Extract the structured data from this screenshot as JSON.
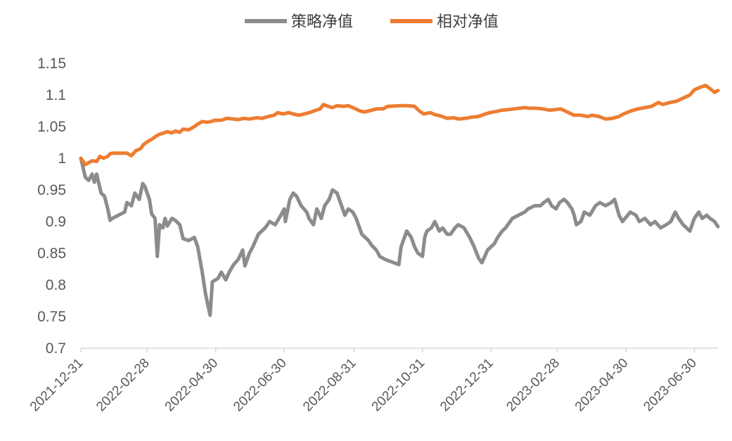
{
  "chart_data": {
    "type": "line",
    "title": "",
    "xlabel": "",
    "ylabel": "",
    "ylim": [
      0.7,
      1.15
    ],
    "yticks": [
      "1.15",
      "1.1",
      "1.05",
      "1",
      "0.95",
      "0.9",
      "0.85",
      "0.8",
      "0.75",
      "0.7"
    ],
    "xticks": [
      "2021-12-31",
      "2022-02-28",
      "2022-04-30",
      "2022-06-30",
      "2022-08-31",
      "2022-10-31",
      "2022-12-31",
      "2023-02-28",
      "2023-04-30",
      "2023-06-30"
    ],
    "xlim": [
      "2021-12-31",
      "2023-07-21"
    ],
    "grid": false,
    "legend_position": "top-center",
    "series": [
      {
        "name": "策略净值",
        "color": "#8c8c8c",
        "points": [
          [
            "2021-12-31",
            1.0
          ],
          [
            "2022-01-04",
            0.97
          ],
          [
            "2022-01-07",
            0.965
          ],
          [
            "2022-01-10",
            0.975
          ],
          [
            "2022-01-12",
            0.962
          ],
          [
            "2022-01-14",
            0.975
          ],
          [
            "2022-01-18",
            0.945
          ],
          [
            "2022-01-21",
            0.94
          ],
          [
            "2022-01-24",
            0.92
          ],
          [
            "2022-01-26",
            0.902
          ],
          [
            "2022-01-28",
            0.905
          ],
          [
            "2022-02-08",
            0.915
          ],
          [
            "2022-02-10",
            0.93
          ],
          [
            "2022-02-14",
            0.925
          ],
          [
            "2022-02-17",
            0.945
          ],
          [
            "2022-02-21",
            0.935
          ],
          [
            "2022-02-24",
            0.96
          ],
          [
            "2022-02-26",
            0.955
          ],
          [
            "2022-03-02",
            0.935
          ],
          [
            "2022-03-04",
            0.912
          ],
          [
            "2022-03-07",
            0.905
          ],
          [
            "2022-03-09",
            0.845
          ],
          [
            "2022-03-11",
            0.895
          ],
          [
            "2022-03-14",
            0.89
          ],
          [
            "2022-03-16",
            0.905
          ],
          [
            "2022-03-18",
            0.893
          ],
          [
            "2022-03-22",
            0.905
          ],
          [
            "2022-03-25",
            0.902
          ],
          [
            "2022-03-29",
            0.895
          ],
          [
            "2022-04-01",
            0.873
          ],
          [
            "2022-04-06",
            0.87
          ],
          [
            "2022-04-11",
            0.875
          ],
          [
            "2022-04-14",
            0.86
          ],
          [
            "2022-04-18",
            0.82
          ],
          [
            "2022-04-21",
            0.785
          ],
          [
            "2022-04-25",
            0.752
          ],
          [
            "2022-04-27",
            0.805
          ],
          [
            "2022-05-02",
            0.81
          ],
          [
            "2022-05-05",
            0.82
          ],
          [
            "2022-05-09",
            0.808
          ],
          [
            "2022-05-12",
            0.82
          ],
          [
            "2022-05-16",
            0.832
          ],
          [
            "2022-05-20",
            0.84
          ],
          [
            "2022-05-24",
            0.855
          ],
          [
            "2022-05-26",
            0.83
          ],
          [
            "2022-05-30",
            0.85
          ],
          [
            "2022-06-02",
            0.86
          ],
          [
            "2022-06-07",
            0.88
          ],
          [
            "2022-06-13",
            0.89
          ],
          [
            "2022-06-17",
            0.9
          ],
          [
            "2022-06-22",
            0.895
          ],
          [
            "2022-06-27",
            0.91
          ],
          [
            "2022-06-30",
            0.92
          ],
          [
            "2022-07-01",
            0.9
          ],
          [
            "2022-07-05",
            0.935
          ],
          [
            "2022-07-08",
            0.945
          ],
          [
            "2022-07-11",
            0.94
          ],
          [
            "2022-07-15",
            0.925
          ],
          [
            "2022-07-20",
            0.915
          ],
          [
            "2022-07-22",
            0.905
          ],
          [
            "2022-07-26",
            0.895
          ],
          [
            "2022-07-29",
            0.92
          ],
          [
            "2022-08-02",
            0.905
          ],
          [
            "2022-08-05",
            0.925
          ],
          [
            "2022-08-09",
            0.935
          ],
          [
            "2022-08-12",
            0.95
          ],
          [
            "2022-08-16",
            0.945
          ],
          [
            "2022-08-19",
            0.93
          ],
          [
            "2022-08-23",
            0.91
          ],
          [
            "2022-08-26",
            0.92
          ],
          [
            "2022-08-30",
            0.915
          ],
          [
            "2022-09-02",
            0.905
          ],
          [
            "2022-09-07",
            0.88
          ],
          [
            "2022-09-13",
            0.87
          ],
          [
            "2022-09-16",
            0.862
          ],
          [
            "2022-09-20",
            0.855
          ],
          [
            "2022-09-23",
            0.845
          ],
          [
            "2022-09-28",
            0.84
          ],
          [
            "2022-10-10",
            0.832
          ],
          [
            "2022-10-12",
            0.86
          ],
          [
            "2022-10-17",
            0.885
          ],
          [
            "2022-10-21",
            0.875
          ],
          [
            "2022-10-24",
            0.86
          ],
          [
            "2022-10-27",
            0.85
          ],
          [
            "2022-10-31",
            0.845
          ],
          [
            "2022-11-02",
            0.875
          ],
          [
            "2022-11-04",
            0.885
          ],
          [
            "2022-11-08",
            0.89
          ],
          [
            "2022-11-11",
            0.9
          ],
          [
            "2022-11-15",
            0.885
          ],
          [
            "2022-11-18",
            0.89
          ],
          [
            "2022-11-22",
            0.88
          ],
          [
            "2022-11-25",
            0.88
          ],
          [
            "2022-11-29",
            0.89
          ],
          [
            "2022-12-02",
            0.895
          ],
          [
            "2022-12-07",
            0.89
          ],
          [
            "2022-12-12",
            0.875
          ],
          [
            "2022-12-16",
            0.86
          ],
          [
            "2022-12-20",
            0.842
          ],
          [
            "2022-12-23",
            0.835
          ],
          [
            "2022-12-28",
            0.855
          ],
          [
            "2023-01-03",
            0.865
          ],
          [
            "2023-01-06",
            0.875
          ],
          [
            "2023-01-10",
            0.885
          ],
          [
            "2023-01-13",
            0.89
          ],
          [
            "2023-01-17",
            0.9
          ],
          [
            "2023-01-19",
            0.905
          ],
          [
            "2023-01-30",
            0.915
          ],
          [
            "2023-02-02",
            0.92
          ],
          [
            "2023-02-08",
            0.925
          ],
          [
            "2023-02-13",
            0.925
          ],
          [
            "2023-02-16",
            0.93
          ],
          [
            "2023-02-20",
            0.935
          ],
          [
            "2023-02-23",
            0.925
          ],
          [
            "2023-02-27",
            0.92
          ],
          [
            "2023-03-02",
            0.93
          ],
          [
            "2023-03-06",
            0.935
          ],
          [
            "2023-03-09",
            0.93
          ],
          [
            "2023-03-13",
            0.92
          ],
          [
            "2023-03-15",
            0.91
          ],
          [
            "2023-03-17",
            0.895
          ],
          [
            "2023-03-21",
            0.9
          ],
          [
            "2023-03-24",
            0.915
          ],
          [
            "2023-03-29",
            0.91
          ],
          [
            "2023-04-03",
            0.925
          ],
          [
            "2023-04-07",
            0.93
          ],
          [
            "2023-04-12",
            0.925
          ],
          [
            "2023-04-17",
            0.93
          ],
          [
            "2023-04-20",
            0.935
          ],
          [
            "2023-04-24",
            0.91
          ],
          [
            "2023-04-27",
            0.9
          ],
          [
            "2023-05-04",
            0.915
          ],
          [
            "2023-05-09",
            0.91
          ],
          [
            "2023-05-12",
            0.9
          ],
          [
            "2023-05-17",
            0.905
          ],
          [
            "2023-05-22",
            0.895
          ],
          [
            "2023-05-26",
            0.9
          ],
          [
            "2023-05-31",
            0.89
          ],
          [
            "2023-06-05",
            0.895
          ],
          [
            "2023-06-09",
            0.9
          ],
          [
            "2023-06-13",
            0.915
          ],
          [
            "2023-06-16",
            0.905
          ],
          [
            "2023-06-20",
            0.895
          ],
          [
            "2023-06-26",
            0.885
          ],
          [
            "2023-06-30",
            0.905
          ],
          [
            "2023-07-04",
            0.915
          ],
          [
            "2023-07-07",
            0.905
          ],
          [
            "2023-07-11",
            0.91
          ],
          [
            "2023-07-14",
            0.905
          ],
          [
            "2023-07-18",
            0.9
          ],
          [
            "2023-07-21",
            0.892
          ]
        ]
      },
      {
        "name": "相对净值",
        "color": "#ed7d31",
        "points": [
          [
            "2021-12-31",
            1.0
          ],
          [
            "2022-01-04",
            0.99
          ],
          [
            "2022-01-07",
            0.993
          ],
          [
            "2022-01-10",
            0.996
          ],
          [
            "2022-01-14",
            0.995
          ],
          [
            "2022-01-17",
            1.003
          ],
          [
            "2022-01-20",
            1.0
          ],
          [
            "2022-01-24",
            1.003
          ],
          [
            "2022-01-26",
            1.007
          ],
          [
            "2022-01-28",
            1.008
          ],
          [
            "2022-02-10",
            1.008
          ],
          [
            "2022-02-14",
            1.004
          ],
          [
            "2022-02-18",
            1.012
          ],
          [
            "2022-02-22",
            1.015
          ],
          [
            "2022-02-25",
            1.022
          ],
          [
            "2022-03-01",
            1.027
          ],
          [
            "2022-03-04",
            1.03
          ],
          [
            "2022-03-08",
            1.035
          ],
          [
            "2022-03-11",
            1.038
          ],
          [
            "2022-03-15",
            1.04
          ],
          [
            "2022-03-18",
            1.042
          ],
          [
            "2022-03-22",
            1.04
          ],
          [
            "2022-03-25",
            1.043
          ],
          [
            "2022-03-29",
            1.041
          ],
          [
            "2022-04-01",
            1.046
          ],
          [
            "2022-04-06",
            1.045
          ],
          [
            "2022-04-11",
            1.05
          ],
          [
            "2022-04-14",
            1.054
          ],
          [
            "2022-04-18",
            1.058
          ],
          [
            "2022-04-22",
            1.057
          ],
          [
            "2022-04-26",
            1.058
          ],
          [
            "2022-04-29",
            1.06
          ],
          [
            "2022-05-05",
            1.06
          ],
          [
            "2022-05-10",
            1.063
          ],
          [
            "2022-05-16",
            1.062
          ],
          [
            "2022-05-20",
            1.061
          ],
          [
            "2022-05-25",
            1.063
          ],
          [
            "2022-05-30",
            1.062
          ],
          [
            "2022-06-06",
            1.064
          ],
          [
            "2022-06-10",
            1.063
          ],
          [
            "2022-06-16",
            1.066
          ],
          [
            "2022-06-21",
            1.068
          ],
          [
            "2022-06-24",
            1.072
          ],
          [
            "2022-06-29",
            1.07
          ],
          [
            "2022-07-04",
            1.072
          ],
          [
            "2022-07-08",
            1.07
          ],
          [
            "2022-07-13",
            1.068
          ],
          [
            "2022-07-18",
            1.07
          ],
          [
            "2022-07-22",
            1.072
          ],
          [
            "2022-07-27",
            1.075
          ],
          [
            "2022-08-01",
            1.078
          ],
          [
            "2022-08-04",
            1.085
          ],
          [
            "2022-08-08",
            1.082
          ],
          [
            "2022-08-12",
            1.08
          ],
          [
            "2022-08-16",
            1.083
          ],
          [
            "2022-08-22",
            1.082
          ],
          [
            "2022-08-26",
            1.083
          ],
          [
            "2022-08-30",
            1.08
          ],
          [
            "2022-09-05",
            1.075
          ],
          [
            "2022-09-09",
            1.073
          ],
          [
            "2022-09-14",
            1.075
          ],
          [
            "2022-09-20",
            1.078
          ],
          [
            "2022-09-26",
            1.078
          ],
          [
            "2022-09-30",
            1.082
          ],
          [
            "2022-10-12",
            1.083
          ],
          [
            "2022-10-18",
            1.083
          ],
          [
            "2022-10-24",
            1.082
          ],
          [
            "2022-10-28",
            1.075
          ],
          [
            "2022-11-01",
            1.07
          ],
          [
            "2022-11-07",
            1.072
          ],
          [
            "2022-11-11",
            1.069
          ],
          [
            "2022-11-16",
            1.067
          ],
          [
            "2022-11-22",
            1.063
          ],
          [
            "2022-11-28",
            1.064
          ],
          [
            "2022-12-02",
            1.062
          ],
          [
            "2022-12-08",
            1.063
          ],
          [
            "2022-12-14",
            1.065
          ],
          [
            "2022-12-20",
            1.066
          ],
          [
            "2022-12-26",
            1.07
          ],
          [
            "2022-12-30",
            1.072
          ],
          [
            "2023-01-05",
            1.074
          ],
          [
            "2023-01-10",
            1.076
          ],
          [
            "2023-01-16",
            1.077
          ],
          [
            "2023-01-30",
            1.08
          ],
          [
            "2023-02-03",
            1.079
          ],
          [
            "2023-02-09",
            1.079
          ],
          [
            "2023-02-15",
            1.078
          ],
          [
            "2023-02-21",
            1.076
          ],
          [
            "2023-02-27",
            1.077
          ],
          [
            "2023-03-03",
            1.078
          ],
          [
            "2023-03-09",
            1.073
          ],
          [
            "2023-03-15",
            1.068
          ],
          [
            "2023-03-21",
            1.068
          ],
          [
            "2023-03-27",
            1.066
          ],
          [
            "2023-03-31",
            1.068
          ],
          [
            "2023-04-06",
            1.066
          ],
          [
            "2023-04-12",
            1.062
          ],
          [
            "2023-04-18",
            1.063
          ],
          [
            "2023-04-24",
            1.066
          ],
          [
            "2023-04-28",
            1.07
          ],
          [
            "2023-05-05",
            1.075
          ],
          [
            "2023-05-11",
            1.078
          ],
          [
            "2023-05-17",
            1.08
          ],
          [
            "2023-05-23",
            1.082
          ],
          [
            "2023-05-29",
            1.088
          ],
          [
            "2023-06-02",
            1.085
          ],
          [
            "2023-06-08",
            1.088
          ],
          [
            "2023-06-14",
            1.09
          ],
          [
            "2023-06-20",
            1.095
          ],
          [
            "2023-06-26",
            1.1
          ],
          [
            "2023-06-30",
            1.108
          ],
          [
            "2023-07-05",
            1.112
          ],
          [
            "2023-07-10",
            1.115
          ],
          [
            "2023-07-14",
            1.11
          ],
          [
            "2023-07-18",
            1.104
          ],
          [
            "2023-07-21",
            1.107
          ]
        ]
      }
    ]
  }
}
